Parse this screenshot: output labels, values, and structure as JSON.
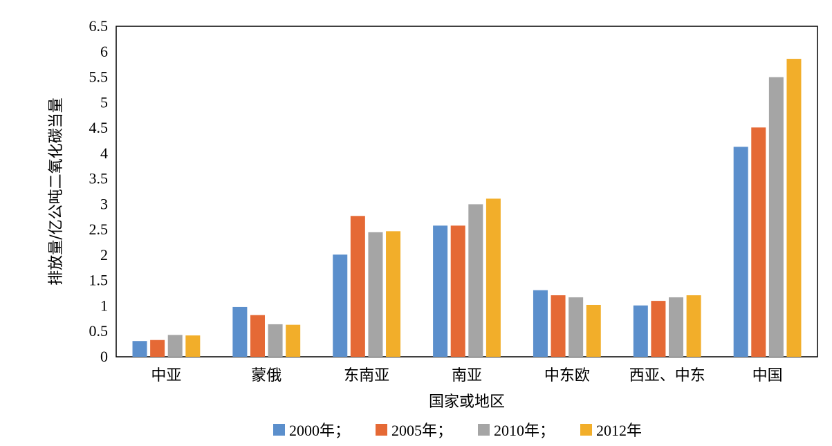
{
  "chart_data": {
    "type": "bar",
    "categories": [
      "中亚",
      "蒙俄",
      "东南亚",
      "南亚",
      "中东欧",
      "西亚、中东",
      "中国"
    ],
    "series": [
      {
        "name": "2000年；",
        "color": "#5B8FCC",
        "values": [
          0.31,
          0.98,
          2.01,
          2.58,
          1.31,
          1.01,
          4.13
        ]
      },
      {
        "name": "2005年；",
        "color": "#E56935",
        "values": [
          0.33,
          0.82,
          2.77,
          2.58,
          1.21,
          1.1,
          4.51
        ]
      },
      {
        "name": "2010年；",
        "color": "#A5A5A5",
        "values": [
          0.43,
          0.64,
          2.45,
          3.0,
          1.17,
          1.17,
          5.5
        ]
      },
      {
        "name": "2012年",
        "color": "#F2AE2A",
        "values": [
          0.42,
          0.63,
          2.47,
          3.11,
          1.02,
          1.21,
          5.86
        ]
      }
    ],
    "title": "",
    "xlabel": "国家或地区",
    "ylabel": "排放量/亿公吨二氧化碳当量",
    "ylim": [
      0,
      6.5
    ],
    "yticks": [
      "0",
      "0.5",
      "1",
      "1.5",
      "2",
      "2.5",
      "3",
      "3.5",
      "4",
      "4.5",
      "5",
      "5.5",
      "6",
      "6.5"
    ],
    "grid": false,
    "legend": "bottom"
  }
}
